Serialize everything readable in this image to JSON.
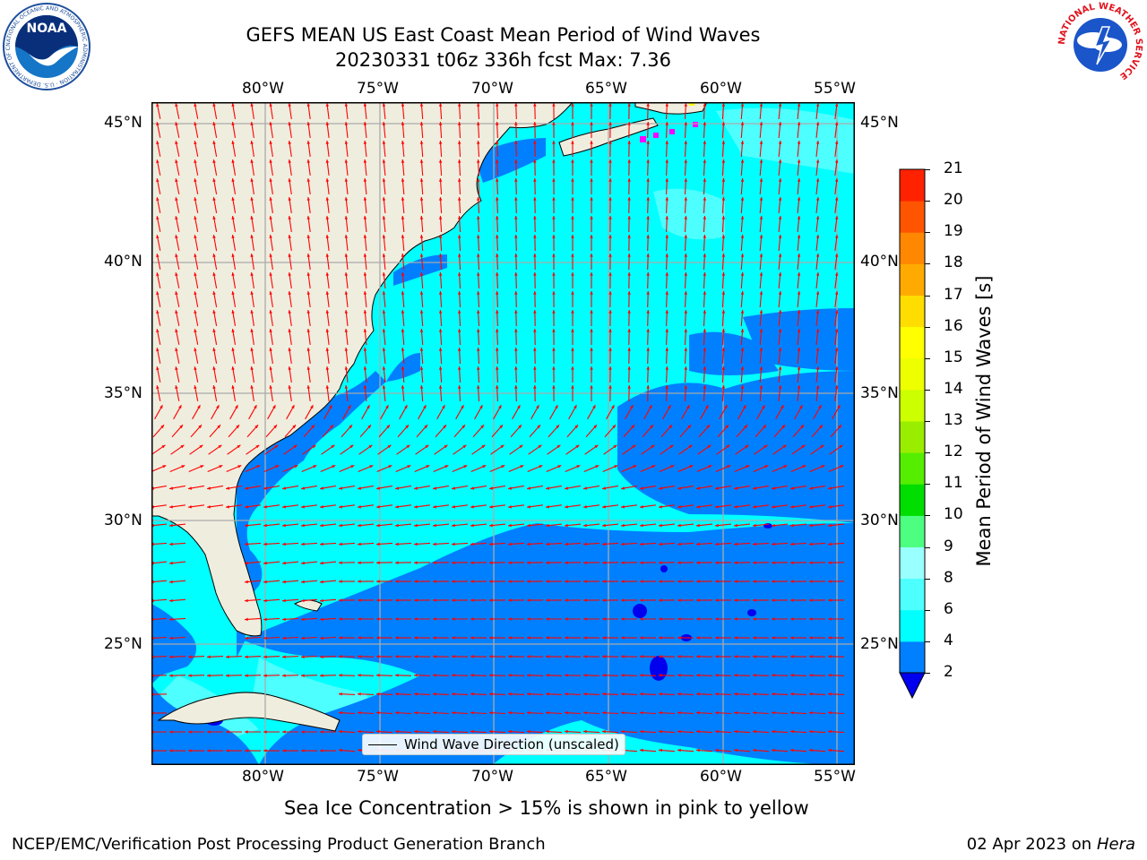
{
  "title": {
    "line1": "GEFS MEAN US East Coast Mean Period of Wind Waves",
    "line2": "20230331 t06z 336h fcst   Max: 7.36"
  },
  "map": {
    "lon_labels": [
      "80°W",
      "75°W",
      "70°W",
      "65°W",
      "60°W",
      "55°W"
    ],
    "lat_labels": [
      "45°N",
      "40°N",
      "35°N",
      "30°N",
      "25°N"
    ],
    "legend_label": "Wind Wave Direction (unscaled)",
    "arrow_color": "#ff0000",
    "land_color": "#efedde"
  },
  "colorbar": {
    "label": "Mean Period of Wind Waves [s]",
    "ticks": [
      "21",
      "20",
      "19",
      "18",
      "17",
      "16",
      "15",
      "14",
      "13",
      "12",
      "11",
      "10",
      "9",
      "8",
      "6",
      "4",
      "2"
    ],
    "colors": [
      "#0000ee",
      "#0080ff",
      "#00ffff",
      "#4dffff",
      "#99ffff",
      "#4dff80",
      "#00dd00",
      "#55ee00",
      "#99ee00",
      "#ccff00",
      "#eeff00",
      "#ffff00",
      "#ffdd00",
      "#ffaa00",
      "#ff8800",
      "#ff5500",
      "#ff2200",
      "#ff0000"
    ]
  },
  "note": "Sea Ice Concentration > 15% is shown in pink to yellow",
  "footer": {
    "left": "NCEP/EMC/Verification Post Processing Product Generation Branch",
    "right_date": "02 Apr 2023 on ",
    "right_machine": "Hera"
  },
  "logos": {
    "noaa_text": "NOAA",
    "noaa_ring": "NATIONAL OCEANIC AND ATMOSPHERIC ADMINISTRATION · U.S. DEPARTMENT OF COMMERCE",
    "nws_ring": "NATIONAL WEATHER SERVICE"
  }
}
